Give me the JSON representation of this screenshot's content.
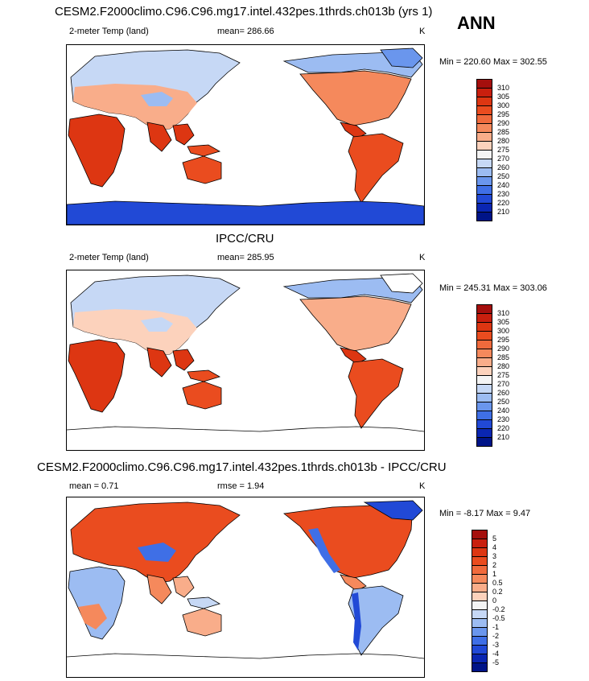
{
  "season": "ANN",
  "panels": [
    {
      "title": "CESM2.F2000climo.C96.C96.mg17.intel.432pes.1thrds.ch013b (yrs 1)",
      "left_label": "2-meter Temp (land)",
      "center_label": "mean= 286.66",
      "unit": "K",
      "minmax": "Min = 220.60 Max = 302.55",
      "colorbar_levels": [
        "310",
        "305",
        "300",
        "295",
        "290",
        "285",
        "280",
        "275",
        "270",
        "260",
        "250",
        "240",
        "230",
        "220",
        "210"
      ],
      "colorbar_colors": [
        "#a50f0d",
        "#c91f0e",
        "#dd3612",
        "#ea4c1f",
        "#f06a3c",
        "#f5895c",
        "#f9ad8a",
        "#fcd2bc",
        "#f4f4f4",
        "#c6d8f5",
        "#9cbcf2",
        "#6a96ed",
        "#3f6fe6",
        "#2149d6",
        "#0a26b2",
        "#001488"
      ]
    },
    {
      "title": "IPCC/CRU",
      "left_label": "2-meter Temp (land)",
      "center_label": "mean= 285.95",
      "unit": "K",
      "minmax": "Min = 245.31 Max = 303.06",
      "colorbar_levels": [
        "310",
        "305",
        "300",
        "295",
        "290",
        "285",
        "280",
        "275",
        "270",
        "260",
        "250",
        "240",
        "230",
        "220",
        "210"
      ],
      "colorbar_colors": [
        "#a50f0d",
        "#c91f0e",
        "#dd3612",
        "#ea4c1f",
        "#f06a3c",
        "#f5895c",
        "#f9ad8a",
        "#fcd2bc",
        "#f4f4f4",
        "#c6d8f5",
        "#9cbcf2",
        "#6a96ed",
        "#3f6fe6",
        "#2149d6",
        "#0a26b2",
        "#001488"
      ]
    },
    {
      "title": "CESM2.F2000climo.C96.C96.mg17.intel.432pes.1thrds.ch013b - IPCC/CRU",
      "left_label": "mean =   0.71",
      "center_label": "rmse =   1.94",
      "unit": "K",
      "minmax": "Min =  -8.17 Max =   9.47",
      "colorbar_levels": [
        "5",
        "4",
        "3",
        "2",
        "1",
        "0.5",
        "0.2",
        "0",
        "-0.2",
        "-0.5",
        "-1",
        "-2",
        "-3",
        "-4",
        "-5"
      ],
      "colorbar_colors": [
        "#a50f0d",
        "#c91f0e",
        "#dd3612",
        "#ea4c1f",
        "#f06a3c",
        "#f5895c",
        "#f9ad8a",
        "#fcd2bc",
        "#f4f4f4",
        "#c6d8f5",
        "#9cbcf2",
        "#6a96ed",
        "#3f6fe6",
        "#2149d6",
        "#0a26b2",
        "#001488"
      ]
    }
  ]
}
